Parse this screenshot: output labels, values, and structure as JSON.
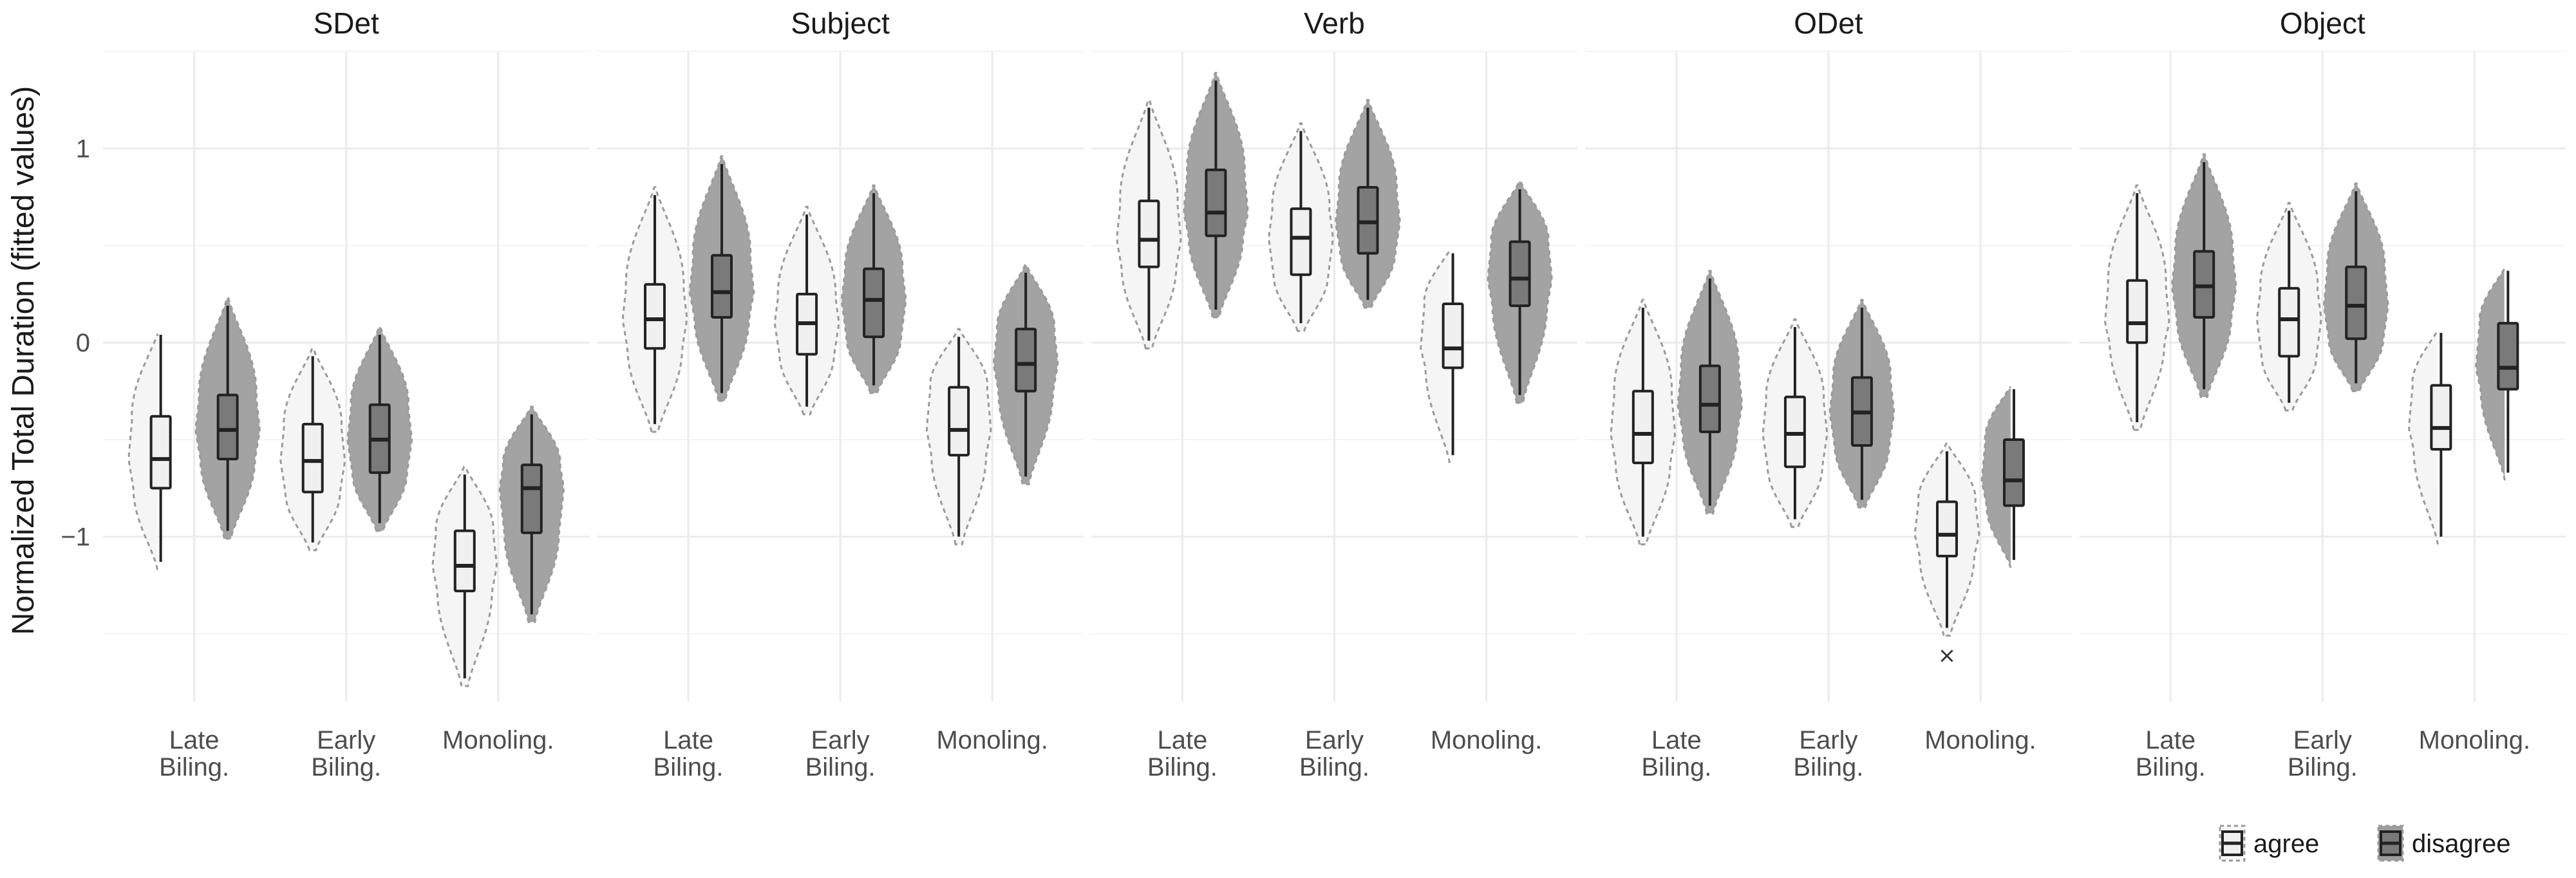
{
  "chart_data": {
    "type": "violin-boxplot",
    "ylabel": "Normalized Total Duration (fitted values)",
    "ylim": [
      -1.85,
      1.5
    ],
    "yticks": [
      -1,
      0,
      1
    ],
    "grid": true,
    "legend_position": "bottom-right",
    "categories": [
      [
        "Late",
        "Biling."
      ],
      [
        "Early",
        "Biling."
      ],
      [
        "Monoling."
      ]
    ],
    "groups": [
      "agree",
      "disagree"
    ],
    "colors": {
      "agree": "#f0f0f0",
      "disagree": "#7a7a7a",
      "outline": "#222222",
      "violin_line": "#9a9a9a",
      "grid": "#ebebeb"
    },
    "panels": [
      {
        "title": "SDet",
        "data": [
          {
            "agree": {
              "min": -1.13,
              "q1": -0.75,
              "median": -0.6,
              "q3": -0.38,
              "max": 0.04
            },
            "disagree": {
              "min": -0.97,
              "q1": -0.6,
              "median": -0.45,
              "q3": -0.27,
              "max": 0.19
            }
          },
          {
            "agree": {
              "min": -1.03,
              "q1": -0.77,
              "median": -0.61,
              "q3": -0.42,
              "max": -0.07
            },
            "disagree": {
              "min": -0.93,
              "q1": -0.67,
              "median": -0.5,
              "q3": -0.32,
              "max": 0.04
            }
          },
          {
            "agree": {
              "min": -1.73,
              "q1": -1.28,
              "median": -1.15,
              "q3": -0.97,
              "max": -0.68
            },
            "disagree": {
              "min": -1.4,
              "q1": -0.98,
              "median": -0.75,
              "q3": -0.63,
              "max": -0.37
            }
          }
        ]
      },
      {
        "title": "Subject",
        "data": [
          {
            "agree": {
              "min": -0.42,
              "q1": -0.03,
              "median": 0.12,
              "q3": 0.3,
              "max": 0.76
            },
            "disagree": {
              "min": -0.26,
              "q1": 0.13,
              "median": 0.26,
              "q3": 0.45,
              "max": 0.92
            }
          },
          {
            "agree": {
              "min": -0.33,
              "q1": -0.06,
              "median": 0.1,
              "q3": 0.25,
              "max": 0.66
            },
            "disagree": {
              "min": -0.22,
              "q1": 0.03,
              "median": 0.22,
              "q3": 0.38,
              "max": 0.77
            }
          },
          {
            "agree": {
              "min": -1.0,
              "q1": -0.58,
              "median": -0.45,
              "q3": -0.23,
              "max": 0.03
            },
            "disagree": {
              "min": -0.69,
              "q1": -0.25,
              "median": -0.11,
              "q3": 0.07,
              "max": 0.36
            }
          }
        ]
      },
      {
        "title": "Verb",
        "data": [
          {
            "agree": {
              "min": 0.01,
              "q1": 0.39,
              "median": 0.53,
              "q3": 0.73,
              "max": 1.21
            },
            "disagree": {
              "min": 0.17,
              "q1": 0.55,
              "median": 0.67,
              "q3": 0.89,
              "max": 1.35
            }
          },
          {
            "agree": {
              "min": 0.1,
              "q1": 0.35,
              "median": 0.54,
              "q3": 0.69,
              "max": 1.09
            },
            "disagree": {
              "min": 0.22,
              "q1": 0.46,
              "median": 0.62,
              "q3": 0.8,
              "max": 1.21
            }
          },
          {
            "agree": {
              "min": -0.58,
              "q1": -0.13,
              "median": -0.03,
              "q3": 0.2,
              "max": 0.46
            },
            "disagree": {
              "min": -0.27,
              "q1": 0.19,
              "median": 0.33,
              "q3": 0.52,
              "max": 0.79
            }
          }
        ]
      },
      {
        "title": "ODet",
        "data": [
          {
            "agree": {
              "min": -1.0,
              "q1": -0.62,
              "median": -0.47,
              "q3": -0.25,
              "max": 0.18
            },
            "disagree": {
              "min": -0.84,
              "q1": -0.46,
              "median": -0.32,
              "q3": -0.12,
              "max": 0.33
            }
          },
          {
            "agree": {
              "min": -0.91,
              "q1": -0.64,
              "median": -0.47,
              "q3": -0.28,
              "max": 0.08
            },
            "disagree": {
              "min": -0.81,
              "q1": -0.53,
              "median": -0.36,
              "q3": -0.18,
              "max": 0.18
            }
          },
          {
            "agree": {
              "min": -1.47,
              "q1": -1.1,
              "median": -0.99,
              "q3": -0.82,
              "max": -0.56,
              "outliers": [
                -1.61
              ]
            },
            "disagree": {
              "min": -1.12,
              "q1": -0.84,
              "median": -0.71,
              "q3": -0.5,
              "max": -0.24
            }
          }
        ]
      },
      {
        "title": "Object",
        "data": [
          {
            "agree": {
              "min": -0.41,
              "q1": 0.0,
              "median": 0.1,
              "q3": 0.32,
              "max": 0.77
            },
            "disagree": {
              "min": -0.24,
              "q1": 0.13,
              "median": 0.29,
              "q3": 0.47,
              "max": 0.93
            }
          },
          {
            "agree": {
              "min": -0.31,
              "q1": -0.07,
              "median": 0.12,
              "q3": 0.28,
              "max": 0.68
            },
            "disagree": {
              "min": -0.21,
              "q1": 0.02,
              "median": 0.19,
              "q3": 0.39,
              "max": 0.78
            }
          },
          {
            "agree": {
              "min": -1.0,
              "q1": -0.55,
              "median": -0.44,
              "q3": -0.22,
              "max": 0.05
            },
            "disagree": {
              "min": -0.67,
              "q1": -0.24,
              "median": -0.13,
              "q3": 0.1,
              "max": 0.37
            }
          }
        ]
      }
    ]
  }
}
